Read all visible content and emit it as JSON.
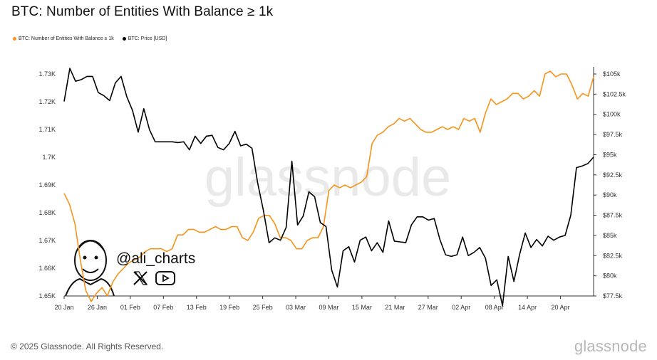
{
  "title": "BTC: Number of Entities With Balance ≥ 1k",
  "legend": [
    {
      "label": "BTC: Number of Entities With Balance ≥ 1k",
      "color": "#f7931a",
      "icon": "orange-dot"
    },
    {
      "label": "BTC: Price [USD]",
      "color": "#000000",
      "icon": "black-dot"
    }
  ],
  "watermark": "glassnode",
  "overlay": {
    "handle": "@ali_charts",
    "icons": [
      "x-logo-icon",
      "youtube-icon"
    ]
  },
  "footer": {
    "copyright": "© 2025 Glassnode. All Rights Reserved.",
    "logo": "glassnode"
  },
  "chart_data": {
    "type": "line",
    "title": "BTC: Number of Entities With Balance ≥ 1k",
    "x_ticks": [
      "20 Jan",
      "26 Jan",
      "01 Feb",
      "07 Feb",
      "13 Feb",
      "19 Feb",
      "25 Feb",
      "03 Mar",
      "09 Mar",
      "15 Mar",
      "21 Mar",
      "27 Mar",
      "02 Apr",
      "08 Apr",
      "14 Apr",
      "20 Apr"
    ],
    "y_left_ticks": [
      "1.65K",
      "1.66K",
      "1.67K",
      "1.68K",
      "1.69K",
      "1.7K",
      "1.71K",
      "1.72K",
      "1.73K"
    ],
    "y_left_range": [
      1650,
      1730
    ],
    "y_right_ticks": [
      "$77.5k",
      "$80k",
      "$82.5k",
      "$85k",
      "$87.5k",
      "$90k",
      "$92.5k",
      "$95k",
      "$97.5k",
      "$100k",
      "$102.5k",
      "$105k"
    ],
    "y_right_range": [
      77500,
      105000
    ],
    "x_range_days": [
      0,
      96
    ],
    "series": [
      {
        "name": "BTC: Number of Entities With Balance ≥ 1k",
        "axis": "left",
        "color": "#f7931a",
        "values": [
          1687,
          1683,
          1676,
          1663,
          1652,
          1648,
          1651,
          1653,
          1650,
          1655,
          1658,
          1660,
          1662,
          1663,
          1664,
          1666,
          1667,
          1667,
          1667,
          1666,
          1667,
          1672,
          1672,
          1674,
          1674,
          1673,
          1673,
          1674,
          1675,
          1674,
          1674,
          1675,
          1675,
          1671,
          1670,
          1673,
          1678,
          1679,
          1679,
          1676,
          1671,
          1671,
          1670,
          1667,
          1667,
          1670,
          1671,
          1671,
          1675,
          1688,
          1690,
          1689,
          1690,
          1689,
          1690,
          1691,
          1693,
          1705,
          1708,
          1709,
          1711,
          1712,
          1714,
          1713,
          1714,
          1712,
          1710,
          1709,
          1709,
          1710,
          1711,
          1710,
          1711,
          1710,
          1714,
          1713,
          1714,
          1709,
          1716,
          1721,
          1719,
          1720,
          1721,
          1723,
          1723,
          1721,
          1722,
          1724,
          1722,
          1730,
          1731,
          1729,
          1730,
          1730,
          1726,
          1721,
          1723,
          1722,
          1729
        ]
      },
      {
        "name": "BTC: Price [USD]",
        "axis": "right",
        "color": "#000000",
        "values": [
          101600,
          105700,
          104100,
          104300,
          104700,
          104700,
          102700,
          102300,
          101700,
          103900,
          104700,
          102200,
          100500,
          97800,
          100700,
          98100,
          96600,
          96600,
          96600,
          96600,
          96500,
          96600,
          95600,
          97300,
          96400,
          97300,
          97400,
          95900,
          95600,
          96400,
          97900,
          96100,
          96300,
          95800,
          91500,
          88100,
          84100,
          84700,
          84400,
          86000,
          94200,
          86300,
          87400,
          90400,
          89800,
          86600,
          86100,
          80700,
          78600,
          83100,
          83600,
          81700,
          84400,
          84800,
          83100,
          84100,
          82900,
          86800,
          84300,
          84200,
          84100,
          86300,
          87300,
          87300,
          86900,
          87100,
          84500,
          82600,
          82400,
          82600,
          84800,
          82500,
          82900,
          83500,
          82200,
          78800,
          79500,
          76300,
          82400,
          79300,
          82600,
          85300,
          83500,
          84500,
          83700,
          84900,
          84400,
          84800,
          85000,
          87500,
          93400,
          93600,
          93900,
          94700
        ]
      }
    ],
    "grid": false
  }
}
